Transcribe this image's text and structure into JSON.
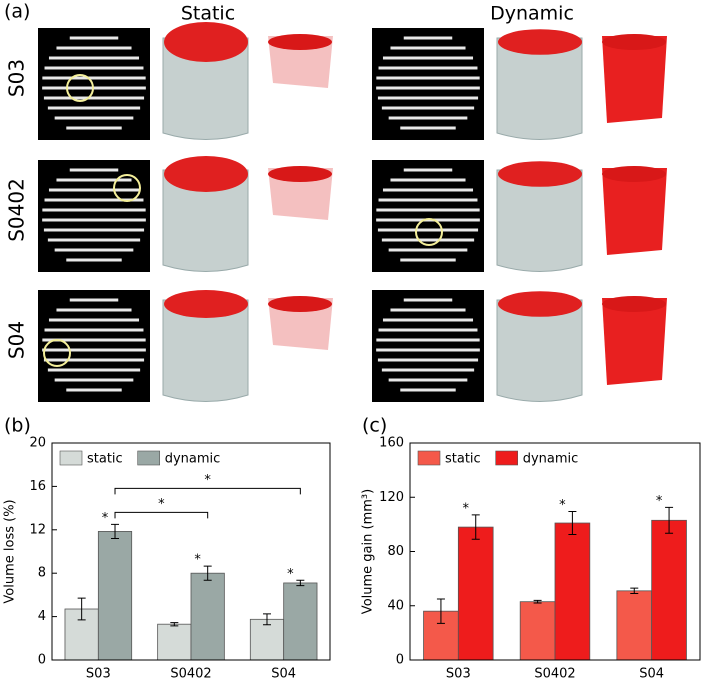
{
  "panel_a": {
    "label": "(a)",
    "columns": [
      "Static",
      "Dynamic"
    ],
    "rows": [
      "S03",
      "S0402",
      "S04"
    ]
  },
  "chart_data": [
    {
      "type": "bar",
      "panel_label": "(b)",
      "ylabel": "Volume loss (%)",
      "categories": [
        "S03",
        "S0402",
        "S04"
      ],
      "series": [
        {
          "name": "static",
          "color": "#d5dbd8",
          "values": [
            4.7,
            3.3,
            3.75
          ],
          "errors": [
            1.0,
            0.15,
            0.5
          ]
        },
        {
          "name": "dynamic",
          "color": "#9aa8a5",
          "values": [
            11.85,
            8.0,
            7.1
          ],
          "errors": [
            0.65,
            0.65,
            0.25
          ]
        }
      ],
      "ylim": [
        0,
        20
      ],
      "yticks": [
        0,
        4,
        8,
        12,
        16,
        20
      ],
      "legend": "top-left",
      "annotations": [
        {
          "text": "*",
          "target": "S03"
        },
        {
          "text": "*",
          "target": "S0402"
        },
        {
          "text": "*",
          "target": "S04"
        }
      ],
      "brackets": [
        {
          "text": "*",
          "from": "S03",
          "to": "S0402"
        },
        {
          "text": "*",
          "from": "S03",
          "to": "S04"
        }
      ]
    },
    {
      "type": "bar",
      "panel_label": "(c)",
      "ylabel": "Volume gain (mm³)",
      "categories": [
        "S03",
        "S0402",
        "S04"
      ],
      "series": [
        {
          "name": "static",
          "color": "#f4594a",
          "values": [
            36,
            43,
            51
          ],
          "errors": [
            9,
            1,
            2
          ]
        },
        {
          "name": "dynamic",
          "color": "#ee1c1c",
          "values": [
            98,
            101,
            103
          ],
          "errors": [
            9,
            8.5,
            9.5
          ]
        }
      ],
      "ylim": [
        0,
        160
      ],
      "yticks": [
        0,
        40,
        80,
        120,
        160
      ],
      "legend": "top-left",
      "annotations": [
        {
          "text": "*",
          "target": "S03"
        },
        {
          "text": "*",
          "target": "S0402"
        },
        {
          "text": "*",
          "target": "S04"
        }
      ],
      "brackets": []
    }
  ]
}
